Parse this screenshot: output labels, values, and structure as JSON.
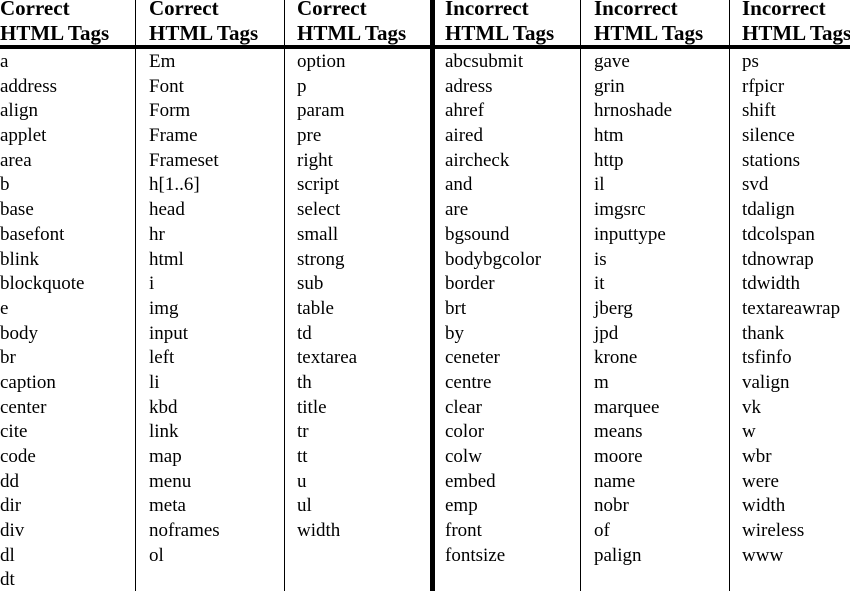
{
  "columns": [
    {
      "header": [
        "Correct",
        "HTML Tags"
      ],
      "tags": [
        "a",
        "address",
        "align",
        "applet",
        "area",
        "b",
        "base",
        "basefont",
        "blink",
        "blockquote",
        "e",
        "body",
        "br",
        "caption",
        "center",
        "cite",
        "code",
        "dd",
        "dir",
        "div",
        "dl",
        "dt"
      ]
    },
    {
      "header": [
        "Correct",
        "HTML Tags"
      ],
      "tags": [
        "Em",
        "Font",
        "Form",
        "Frame",
        "Frameset",
        "h[1..6]",
        "head",
        "hr",
        "html",
        "i",
        "img",
        "input",
        "left",
        "li",
        "kbd",
        "link",
        "map",
        "menu",
        "meta",
        "noframes",
        "ol"
      ]
    },
    {
      "header": [
        "Correct",
        "HTML Tags"
      ],
      "tags": [
        "option",
        "p",
        "param",
        "pre",
        "right",
        "script",
        "select",
        "small",
        "strong",
        "sub",
        "table",
        "td",
        "textarea",
        "th",
        "title",
        "tr",
        "tt",
        "u",
        "ul",
        "width"
      ]
    },
    {
      "header": [
        "Incorrect",
        "HTML Tags"
      ],
      "tags": [
        "abcsubmit",
        "adress",
        "ahref",
        "aired",
        "aircheck",
        "and",
        "are",
        "bgsound",
        "bodybgcolor",
        "border",
        "brt",
        "by",
        "ceneter",
        "centre",
        "clear",
        "color",
        "colw",
        "embed",
        "emp",
        "front",
        "fontsize"
      ]
    },
    {
      "header": [
        "Incorrect",
        "HTML Tags"
      ],
      "tags": [
        "gave",
        "grin",
        "hrnoshade",
        "htm",
        "http",
        "il",
        "imgsrc",
        "inputtype",
        "is",
        "it",
        "jberg",
        "jpd",
        "krone",
        "m",
        "marquee",
        "means",
        "moore",
        "name",
        "nobr",
        "of",
        "palign"
      ]
    },
    {
      "header": [
        "Incorrect",
        "HTML Tags"
      ],
      "tags": [
        "ps",
        "rfpicr",
        "shift",
        "silence",
        "stations",
        "svd",
        "tdalign",
        "tdcolspan",
        "tdnowrap",
        "tdwidth",
        "textareawrap",
        "thank",
        "tsfinfo",
        "valign",
        "vk",
        "w",
        "wbr",
        "were",
        "width",
        "wireless",
        "www"
      ]
    }
  ]
}
